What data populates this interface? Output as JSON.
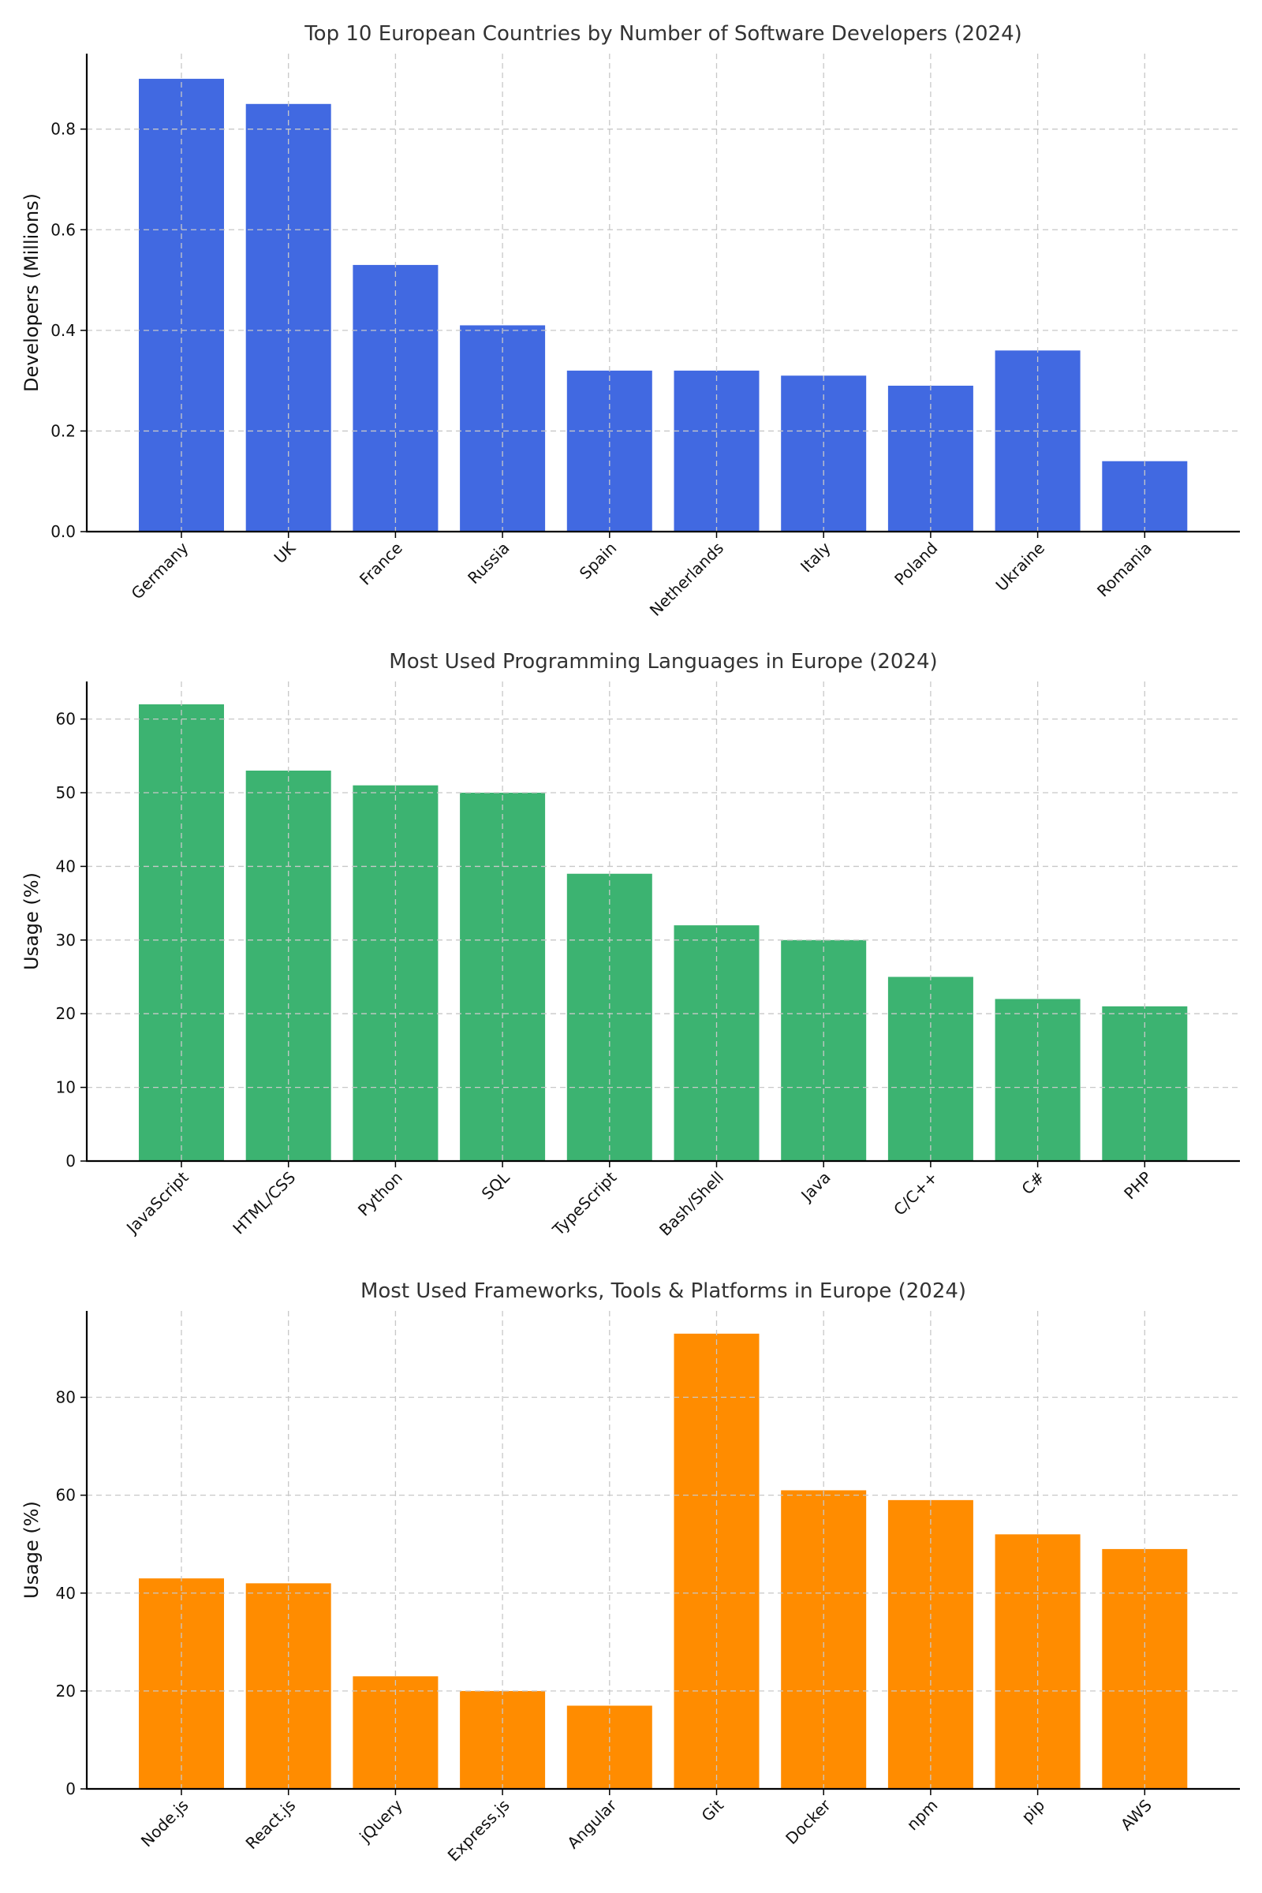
{
  "chart_data": [
    {
      "type": "bar",
      "title": "Top 10 European Countries by Number of Software Developers (2024)",
      "xlabel": "",
      "ylabel": "Developers (Millions)",
      "categories": [
        "Germany",
        "UK",
        "France",
        "Russia",
        "Spain",
        "Netherlands",
        "Italy",
        "Poland",
        "Ukraine",
        "Romania"
      ],
      "values": [
        0.9,
        0.85,
        0.53,
        0.41,
        0.32,
        0.32,
        0.31,
        0.29,
        0.36,
        0.14
      ],
      "ylim": [
        0,
        0.95
      ],
      "yticks": [
        0.0,
        0.2,
        0.4,
        0.6,
        0.8
      ],
      "ytick_labels": [
        "0.0",
        "0.2",
        "0.4",
        "0.6",
        "0.8"
      ],
      "color": "#4169E1",
      "grid": true,
      "legend": "none"
    },
    {
      "type": "bar",
      "title": "Most Used Programming Languages in Europe (2024)",
      "xlabel": "",
      "ylabel": "Usage (%)",
      "categories": [
        "JavaScript",
        "HTML/CSS",
        "Python",
        "SQL",
        "TypeScript",
        "Bash/Shell",
        "Java",
        "C/C++",
        "C#",
        "PHP"
      ],
      "values": [
        62,
        53,
        51,
        50,
        39,
        32,
        30,
        25,
        22,
        21
      ],
      "ylim": [
        0,
        65.1
      ],
      "yticks": [
        0,
        10,
        20,
        30,
        40,
        50,
        60
      ],
      "ytick_labels": [
        "0",
        "10",
        "20",
        "30",
        "40",
        "50",
        "60"
      ],
      "color": "#3CB371",
      "grid": true,
      "legend": "none"
    },
    {
      "type": "bar",
      "title": "Most Used Frameworks, Tools & Platforms in Europe (2024)",
      "xlabel": "",
      "ylabel": "Usage (%)",
      "categories": [
        "Node.js",
        "React.js",
        "jQuery",
        "Express.js",
        "Angular",
        "Git",
        "Docker",
        "npm",
        "pip",
        "AWS"
      ],
      "values": [
        43,
        42,
        23,
        20,
        17,
        93,
        61,
        59,
        52,
        49
      ],
      "ylim": [
        0,
        97.65
      ],
      "yticks": [
        0,
        20,
        40,
        60,
        80
      ],
      "ytick_labels": [
        "0",
        "20",
        "40",
        "60",
        "80"
      ],
      "color": "#FF8C00",
      "grid": true,
      "legend": "none"
    }
  ]
}
